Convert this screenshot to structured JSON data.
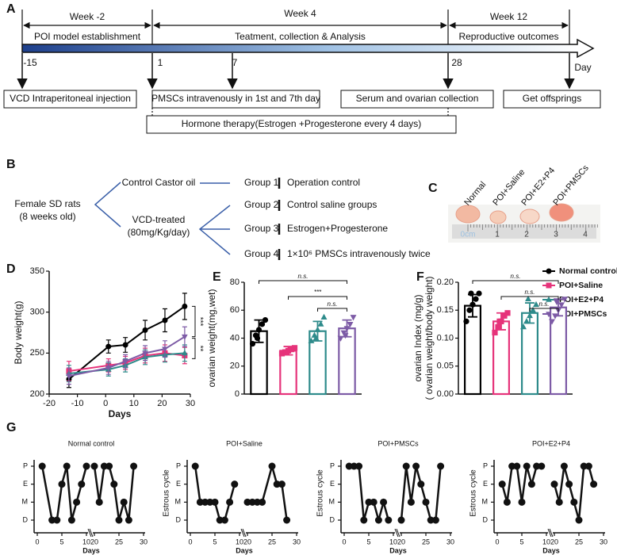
{
  "panel_labels": [
    "A",
    "B",
    "C",
    "D",
    "E",
    "F",
    "G"
  ],
  "timeline": {
    "weeks": [
      {
        "label": "Week -2",
        "phase": "POI model establishment"
      },
      {
        "label": "Week 4",
        "phase": "Teatment, collection & Analysis"
      },
      {
        "label": "Week 12",
        "phase": "Reproductive outcomes"
      }
    ],
    "days": [
      -15,
      1,
      7,
      28
    ],
    "axis_label": "Day",
    "events": [
      "VCD Intraperitoneal injection",
      "PMSCs intravenously in 1st and 7th day",
      "Serum and ovarian collection",
      "Get offsprings"
    ],
    "hormone": "Hormone therapy(Estrogen +Progesterone every 4 days)"
  },
  "design": {
    "source": [
      "Female SD rats",
      "(8 weeks old)"
    ],
    "arms": [
      [
        "Control Castor oil"
      ],
      [
        "VCD-treated",
        "(80mg/Kg/day)"
      ]
    ],
    "groups": [
      {
        "name": "Group 1",
        "treatment": "Operation control"
      },
      {
        "name": "Group 2",
        "treatment": "Control saline groups"
      },
      {
        "name": "Group 3",
        "treatment": "Estrogen+Progesterone"
      },
      {
        "name": "Group 4",
        "treatment": "1×10⁶ PMSCs intravenously twice"
      }
    ]
  },
  "photo": {
    "labels": [
      "Normal",
      "POI+Saline",
      "POI+E2+P4",
      "POI+PMSCs"
    ],
    "ruler": [
      "0cm",
      1,
      2,
      3,
      4
    ]
  },
  "chart_data": [
    {
      "type": "line",
      "ylabel": "Body weight(g)",
      "xlabel": "Days",
      "x": [
        -13,
        1,
        7,
        14,
        21,
        28
      ],
      "xlim": [
        -20,
        30
      ],
      "xticks": [
        -20,
        -10,
        0,
        10,
        20,
        30
      ],
      "ylim": [
        200,
        350
      ],
      "yticks": [
        200,
        250,
        300,
        350
      ],
      "series": [
        {
          "name": "Normal control",
          "color": "#000000",
          "marker": "circle",
          "values": [
            218,
            258,
            260,
            278,
            290,
            307
          ],
          "errors": [
            10,
            8,
            9,
            12,
            14,
            16
          ]
        },
        {
          "name": "POI+Saline",
          "color": "#e6337a",
          "marker": "square",
          "values": [
            228,
            235,
            238,
            247,
            250,
            247
          ],
          "errors": [
            12,
            8,
            8,
            9,
            10,
            10
          ]
        },
        {
          "name": "POI+E2+P4",
          "color": "#2e8b8b",
          "marker": "triangle",
          "values": [
            225,
            230,
            235,
            245,
            248,
            250
          ],
          "errors": [
            10,
            8,
            8,
            9,
            9,
            10
          ]
        },
        {
          "name": "POI+PMSCs",
          "color": "#7d5ba6",
          "marker": "triangle-down",
          "values": [
            222,
            232,
            240,
            250,
            255,
            270
          ],
          "errors": [
            10,
            8,
            8,
            9,
            10,
            12
          ]
        }
      ],
      "annotations": [
        "***",
        "**"
      ]
    },
    {
      "type": "bar",
      "ylabel": [
        "ovarian weight(mg,wet)"
      ],
      "ylim": [
        0,
        80
      ],
      "yticks": [
        0,
        20,
        40,
        60,
        80
      ],
      "values": [
        45,
        31,
        45,
        47
      ],
      "errors": [
        8,
        3,
        7,
        6
      ],
      "colors": [
        "#000000",
        "#e6337a",
        "#2e8b8b",
        "#7d5ba6"
      ],
      "markers": [
        "circle",
        "square",
        "triangle",
        "triangle-down"
      ],
      "points": [
        [
          36,
          42,
          46,
          50,
          53,
          40
        ],
        [
          29,
          30,
          31,
          32,
          33,
          30
        ],
        [
          38,
          42,
          46,
          50,
          55,
          40
        ],
        [
          40,
          44,
          47,
          50,
          55,
          42
        ]
      ],
      "significance": [
        "n.s.",
        "***",
        "n.s."
      ]
    },
    {
      "type": "bar",
      "ylabel": [
        "ovarian Index (mg/g)",
        "( ovarian weight/body weight)"
      ],
      "ylim": [
        0,
        0.2
      ],
      "yticks": [
        {
          "value": 0,
          "label": "0.00"
        },
        {
          "value": 0.05,
          "label": "0.05"
        },
        {
          "value": 0.1,
          "label": "0.10"
        },
        {
          "value": 0.15,
          "label": "0.15"
        },
        {
          "value": 0.2,
          "label": "0.20"
        }
      ],
      "values": [
        0.158,
        0.13,
        0.145,
        0.155
      ],
      "errors": [
        0.02,
        0.015,
        0.018,
        0.015
      ],
      "colors": [
        "#000000",
        "#e6337a",
        "#2e8b8b",
        "#7d5ba6"
      ],
      "markers": [
        "circle",
        "square",
        "triangle",
        "triangle-down"
      ],
      "points": [
        [
          0.13,
          0.15,
          0.16,
          0.17,
          0.18,
          0.18
        ],
        [
          0.11,
          0.12,
          0.13,
          0.14,
          0.145,
          0.13
        ],
        [
          0.12,
          0.13,
          0.14,
          0.15,
          0.16,
          0.17
        ],
        [
          0.13,
          0.14,
          0.15,
          0.16,
          0.17,
          0.165
        ]
      ],
      "significance": [
        "n.s.",
        "n.s.",
        "n.s."
      ]
    },
    {
      "type": "line",
      "title": "Normal control",
      "xlabel": "Days",
      "xlim": [
        0,
        30
      ],
      "xbreak": [
        10,
        20
      ],
      "xticks": [
        0,
        5,
        10,
        20,
        25,
        30
      ],
      "yticks": [
        "D",
        "M",
        "E",
        "P"
      ],
      "x": [
        1,
        3,
        4,
        5,
        6,
        7,
        8,
        9,
        10,
        20,
        21,
        22,
        23,
        24,
        25,
        26,
        27,
        28
      ],
      "values": [
        "P",
        "D",
        "D",
        "E",
        "P",
        "D",
        "M",
        "E",
        "P",
        "P",
        "M",
        "P",
        "P",
        "E",
        "D",
        "M",
        "D",
        "P"
      ]
    },
    {
      "type": "line",
      "title": "POI+Saline",
      "ylabel": "Estrous cycle",
      "xlabel": "Days",
      "xlim": [
        0,
        30
      ],
      "xbreak": [
        10,
        20
      ],
      "xticks": [
        0,
        5,
        10,
        20,
        25,
        30
      ],
      "yticks": [
        "D",
        "M",
        "E",
        "P"
      ],
      "x": [
        1,
        2,
        3,
        4,
        5,
        6,
        7,
        8,
        9,
        20,
        21,
        22,
        23,
        25,
        26,
        27,
        28
      ],
      "values": [
        "P",
        "M",
        "M",
        "M",
        "M",
        "D",
        "D",
        "M",
        "E",
        "M",
        "M",
        "M",
        "M",
        "P",
        "E",
        "E",
        "D"
      ]
    },
    {
      "type": "line",
      "title": "POI+PMSCs",
      "ylabel": "Estrous cycle",
      "xlabel": "Days",
      "xlim": [
        0,
        30
      ],
      "xbreak": [
        10,
        20
      ],
      "xticks": [
        0,
        5,
        10,
        20,
        25,
        30
      ],
      "yticks": [
        "D",
        "M",
        "E",
        "P"
      ],
      "x": [
        1,
        2,
        3,
        4,
        5,
        6,
        7,
        8,
        9,
        20,
        21,
        22,
        23,
        24,
        25,
        26,
        27,
        28
      ],
      "values": [
        "P",
        "P",
        "P",
        "D",
        "M",
        "M",
        "D",
        "M",
        "D",
        "D",
        "P",
        "M",
        "P",
        "E",
        "M",
        "D",
        "D",
        "P"
      ]
    },
    {
      "type": "line",
      "title": "POI+E2+P4",
      "ylabel": "Estrous cycle",
      "xlabel": "Days",
      "xlim": [
        0,
        30
      ],
      "xbreak": [
        10,
        20
      ],
      "xticks": [
        0,
        5,
        10,
        20,
        25,
        30
      ],
      "yticks": [
        "D",
        "M",
        "E",
        "P"
      ],
      "x": [
        1,
        2,
        3,
        4,
        5,
        6,
        7,
        8,
        9,
        20,
        21,
        22,
        23,
        24,
        25,
        26,
        27,
        28
      ],
      "values": [
        "E",
        "M",
        "P",
        "P",
        "M",
        "P",
        "E",
        "P",
        "P",
        "E",
        "M",
        "P",
        "E",
        "M",
        "D",
        "P",
        "P",
        "E"
      ]
    }
  ]
}
